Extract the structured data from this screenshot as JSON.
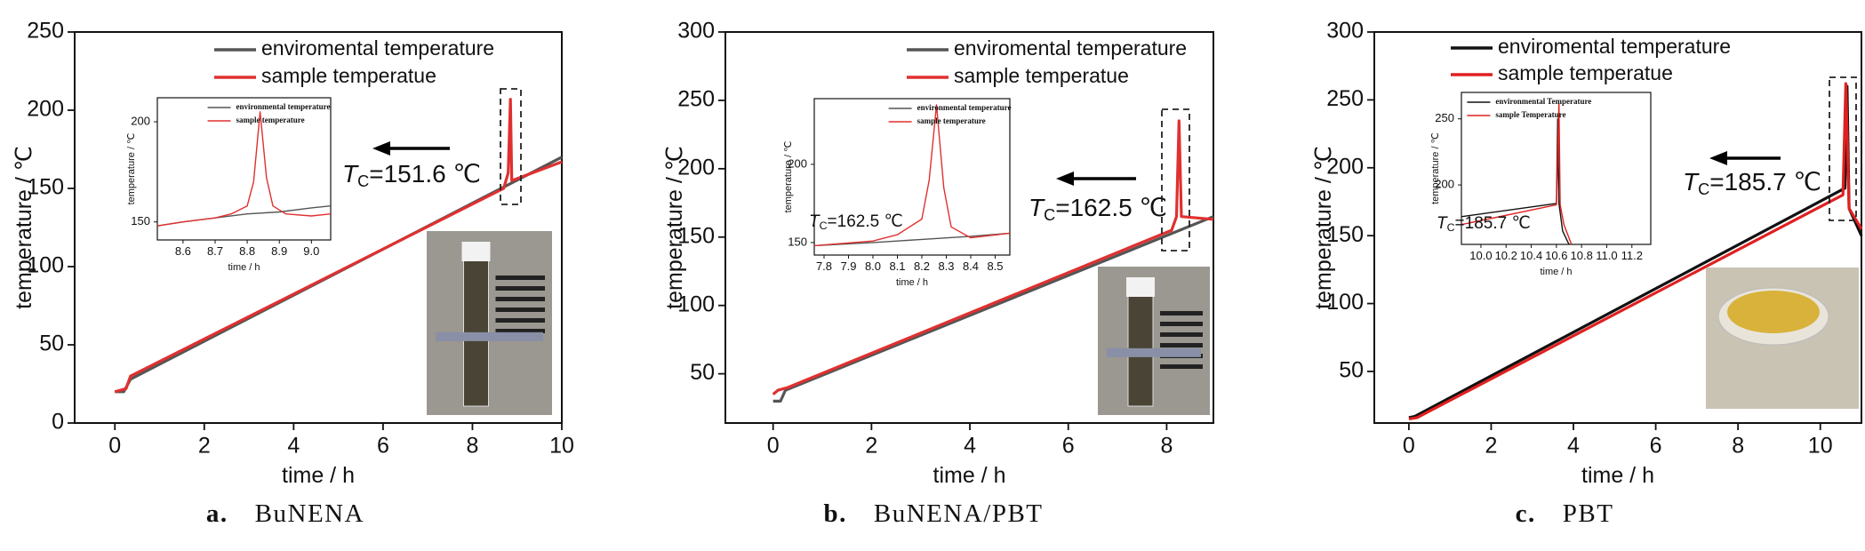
{
  "chart_data": [
    {
      "type": "line",
      "caption_label": "a.",
      "caption": "BuNENA",
      "xlabel": "time / h",
      "ylabel": "temperature / ℃",
      "xlim": [
        -0.9,
        10
      ],
      "ylim": [
        0,
        250
      ],
      "xticks": [
        0,
        2,
        4,
        6,
        8,
        10
      ],
      "yticks": [
        0,
        50,
        100,
        150,
        200,
        250
      ],
      "series": [
        {
          "name": "enviromental temperature",
          "color": "#555555",
          "x": [
            0,
            0.2,
            0.35,
            10
          ],
          "values": [
            20,
            20,
            28,
            170
          ]
        },
        {
          "name": "sample temperatue",
          "color": "#e03030",
          "x": [
            0,
            0.25,
            0.35,
            8.7,
            8.8,
            8.85,
            8.88,
            10
          ],
          "values": [
            20,
            22,
            30,
            150,
            160,
            207,
            155,
            167
          ]
        }
      ],
      "annotation": {
        "symbol": "T",
        "subscript": "C",
        "text": "=151.6 ℃"
      },
      "inset": {
        "type": "line",
        "xlabel": "time / h",
        "ylabel": "temperature / ℃",
        "xlim": [
          8.52,
          9.06
        ],
        "ylim": [
          141,
          212
        ],
        "xticks": [
          {
            "value": 8.6,
            "label": "8.6"
          },
          {
            "value": 8.7,
            "label": "8.7"
          },
          {
            "value": 8.8,
            "label": "8.8"
          },
          {
            "value": 8.9,
            "label": "8.9"
          },
          {
            "value": 9,
            "label": "9.0"
          }
        ],
        "yticks": [
          150,
          200
        ],
        "series": [
          {
            "name": "environmental temperature",
            "color": "#555555",
            "x": [
              8.52,
              8.6,
              8.7,
              8.8,
              8.9,
              9.0,
              9.06
            ],
            "values": [
              148,
              150,
              152,
              154,
              155,
              157,
              158
            ]
          },
          {
            "name": "sample temperature",
            "color": "#e03030",
            "x": [
              8.52,
              8.6,
              8.7,
              8.75,
              8.8,
              8.82,
              8.84,
              8.86,
              8.88,
              8.92,
              9.0,
              9.06
            ],
            "values": [
              148,
              150,
              152,
              154,
              158,
              170,
              205,
              172,
              158,
              154,
              153,
              154
            ]
          }
        ]
      }
    },
    {
      "type": "line",
      "caption_label": "b.",
      "caption": "BuNENA/PBT",
      "xlabel": "time / h",
      "ylabel": "temperature / ℃",
      "xlim": [
        -0.97,
        8.95
      ],
      "ylim": [
        14,
        300
      ],
      "xticks": [
        0,
        2,
        4,
        6,
        8
      ],
      "yticks": [
        50,
        100,
        150,
        200,
        250,
        300
      ],
      "series": [
        {
          "name": "enviromental temperature",
          "color": "#555555",
          "x": [
            0,
            0.15,
            0.25,
            8.95
          ],
          "values": [
            30,
            30,
            38,
            165
          ]
        },
        {
          "name": "sample temperatue",
          "color": "#e03030",
          "x": [
            0,
            0.1,
            0.3,
            8.1,
            8.2,
            8.25,
            8.3,
            8.95
          ],
          "values": [
            35,
            38,
            40,
            155,
            165,
            235,
            165,
            163
          ]
        }
      ],
      "annotation": {
        "symbol": "T",
        "subscript": "C",
        "text": "=162.5 ℃"
      },
      "inset": {
        "type": "line",
        "xlabel": "time / h",
        "ylabel": "temperature / ℃",
        "xlim": [
          7.76,
          8.56
        ],
        "ylim": [
          142,
          242
        ],
        "xticks": [
          {
            "value": 7.8,
            "label": "7.8"
          },
          {
            "value": 7.9,
            "label": "7.9"
          },
          {
            "value": 8,
            "label": "8.0"
          },
          {
            "value": 8.1,
            "label": "8.1"
          },
          {
            "value": 8.2,
            "label": "8.2"
          },
          {
            "value": 8.3,
            "label": "8.3"
          },
          {
            "value": 8.4,
            "label": "8.4"
          },
          {
            "value": 8.5,
            "label": "8.5"
          }
        ],
        "yticks": [
          150,
          200
        ],
        "annotation": {
          "symbol": "T",
          "subscript": "C",
          "text": "=162.5 ℃"
        },
        "series": [
          {
            "name": "environmental temperature",
            "color": "#555555",
            "x": [
              7.76,
              8.0,
              8.2,
              8.4,
              8.56
            ],
            "values": [
              148,
              150,
              152,
              154,
              156
            ]
          },
          {
            "name": "sample temperature",
            "color": "#e03030",
            "x": [
              7.76,
              8.0,
              8.1,
              8.2,
              8.23,
              8.26,
              8.29,
              8.32,
              8.4,
              8.56
            ],
            "values": [
              148,
              151,
              155,
              165,
              190,
              238,
              185,
              160,
              153,
              156
            ]
          }
        ]
      }
    },
    {
      "type": "line",
      "caption_label": "c.",
      "caption": "PBT",
      "xlabel": "time / h",
      "ylabel": "temperature / ℃",
      "xlim": [
        -0.84,
        11
      ],
      "ylim": [
        12,
        300
      ],
      "xticks": [
        0,
        2,
        4,
        6,
        8,
        10
      ],
      "yticks": [
        50,
        100,
        150,
        200,
        250,
        300
      ],
      "series": [
        {
          "name": "enviromental temperature",
          "color": "#111111",
          "x": [
            0,
            0.15,
            10.6,
            10.65,
            10.7,
            11
          ],
          "values": [
            16,
            17,
            185,
            260,
            170,
            150
          ]
        },
        {
          "name": "sample temperatue",
          "color": "#e02020",
          "x": [
            0,
            0.2,
            10.55,
            10.62,
            10.7,
            11
          ],
          "values": [
            15,
            16,
            180,
            262,
            170,
            155
          ]
        }
      ],
      "annotation": {
        "symbol": "T",
        "subscript": "C",
        "text": "=185.7 ℃"
      },
      "inset": {
        "type": "line",
        "xlabel": "time / h",
        "ylabel": "temperature / ℃",
        "xlim": [
          9.845,
          11.35
        ],
        "ylim": [
          155,
          270
        ],
        "xticks": [
          {
            "value": 10,
            "label": "10.0"
          },
          {
            "value": 10.2,
            "label": "10.2"
          },
          {
            "value": 10.4,
            "label": "10.4"
          },
          {
            "value": 10.6,
            "label": "10.6"
          },
          {
            "value": 10.8,
            "label": "10.8"
          },
          {
            "value": 11,
            "label": "11.0"
          },
          {
            "value": 11.2,
            "label": "11.2"
          }
        ],
        "yticks": [
          200,
          250
        ],
        "annotation": {
          "symbol": "T",
          "subscript": "C",
          "text": "=185.7 ℃"
        },
        "series": [
          {
            "name": "environmental Temperature",
            "color": "#111111",
            "x": [
              9.845,
              10.6,
              10.61,
              10.62,
              10.65,
              10.7
            ],
            "values": [
              176,
              186,
              250,
              186,
              165,
              155
            ]
          },
          {
            "name": "sample Temperature",
            "color": "#e02020",
            "x": [
              9.845,
              10.6,
              10.62,
              10.63,
              10.66,
              10.72
            ],
            "values": [
              170,
              185,
              262,
              185,
              170,
              155
            ]
          }
        ]
      }
    }
  ]
}
